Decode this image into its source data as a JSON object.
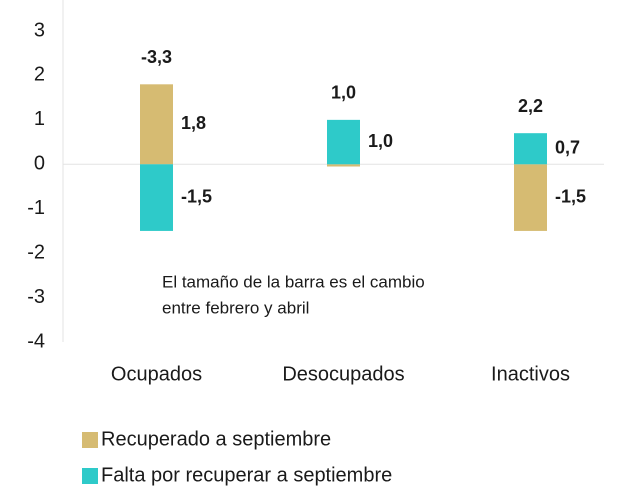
{
  "chart_data": {
    "type": "bar",
    "stacked": true,
    "categories": [
      "Ocupados",
      "Desocupados",
      "Inactivos"
    ],
    "series": [
      {
        "name": "Recuperado a septiembre",
        "color": "#d6bb72",
        "values": [
          1.8,
          -0.05,
          -1.5
        ],
        "value_labels": [
          "1,8",
          null,
          "-1,5"
        ]
      },
      {
        "name": "Falta por recuperar a septiembre",
        "color": "#2ecac9",
        "values": [
          -1.5,
          1.0,
          0.7
        ],
        "value_labels": [
          "-1,5",
          "1,0",
          "0,7"
        ]
      }
    ],
    "totals": {
      "color": "#123d6e",
      "values": [
        -3.3,
        1.0,
        2.2
      ],
      "value_labels": [
        "-3,3",
        "1,0",
        "2,2"
      ]
    },
    "annotation": [
      "El tamaño de la barra es el cambio",
      "entre febrero y abril"
    ],
    "ylim": [
      -4,
      3
    ],
    "yticks": [
      -4,
      -3,
      -2,
      -1,
      0,
      1,
      2,
      3
    ],
    "grid": false
  }
}
